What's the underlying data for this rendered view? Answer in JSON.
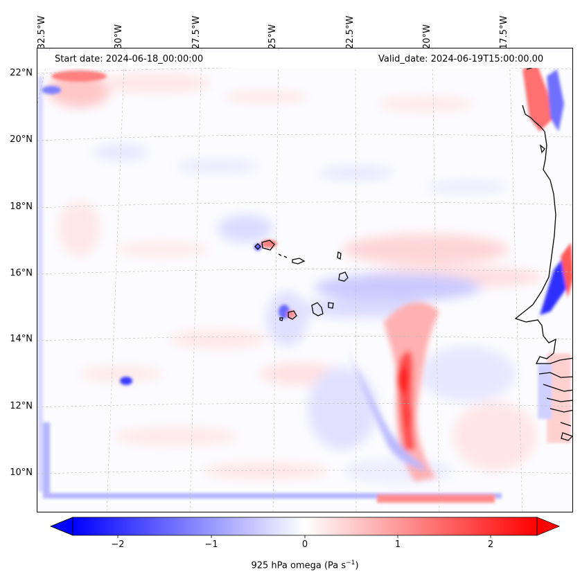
{
  "map": {
    "start_date": "Start date: 2024-06-18_00:00:00",
    "valid_date": "Valid_date: 2024-06-19T15:00:00.00",
    "lon_labels": [
      "32.5°W",
      "30°W",
      "27.5°W",
      "25°W",
      "22.5°W",
      "20°W",
      "17.5°W"
    ],
    "lat_labels": [
      "22°N",
      "20°N",
      "18°N",
      "16°N",
      "14°N",
      "12°N",
      "10°N"
    ],
    "colormap": {
      "low": "#0000ff",
      "mid": "#ffffff",
      "high": "#ff0000"
    }
  },
  "colorbar": {
    "range": [
      -2.5,
      2.5
    ],
    "ticks": [
      "−2",
      "−1",
      "0",
      "1",
      "2"
    ],
    "label_text": "925 hPa omega (Pa s",
    "label_sup": "−1",
    "label_close": ")"
  }
}
